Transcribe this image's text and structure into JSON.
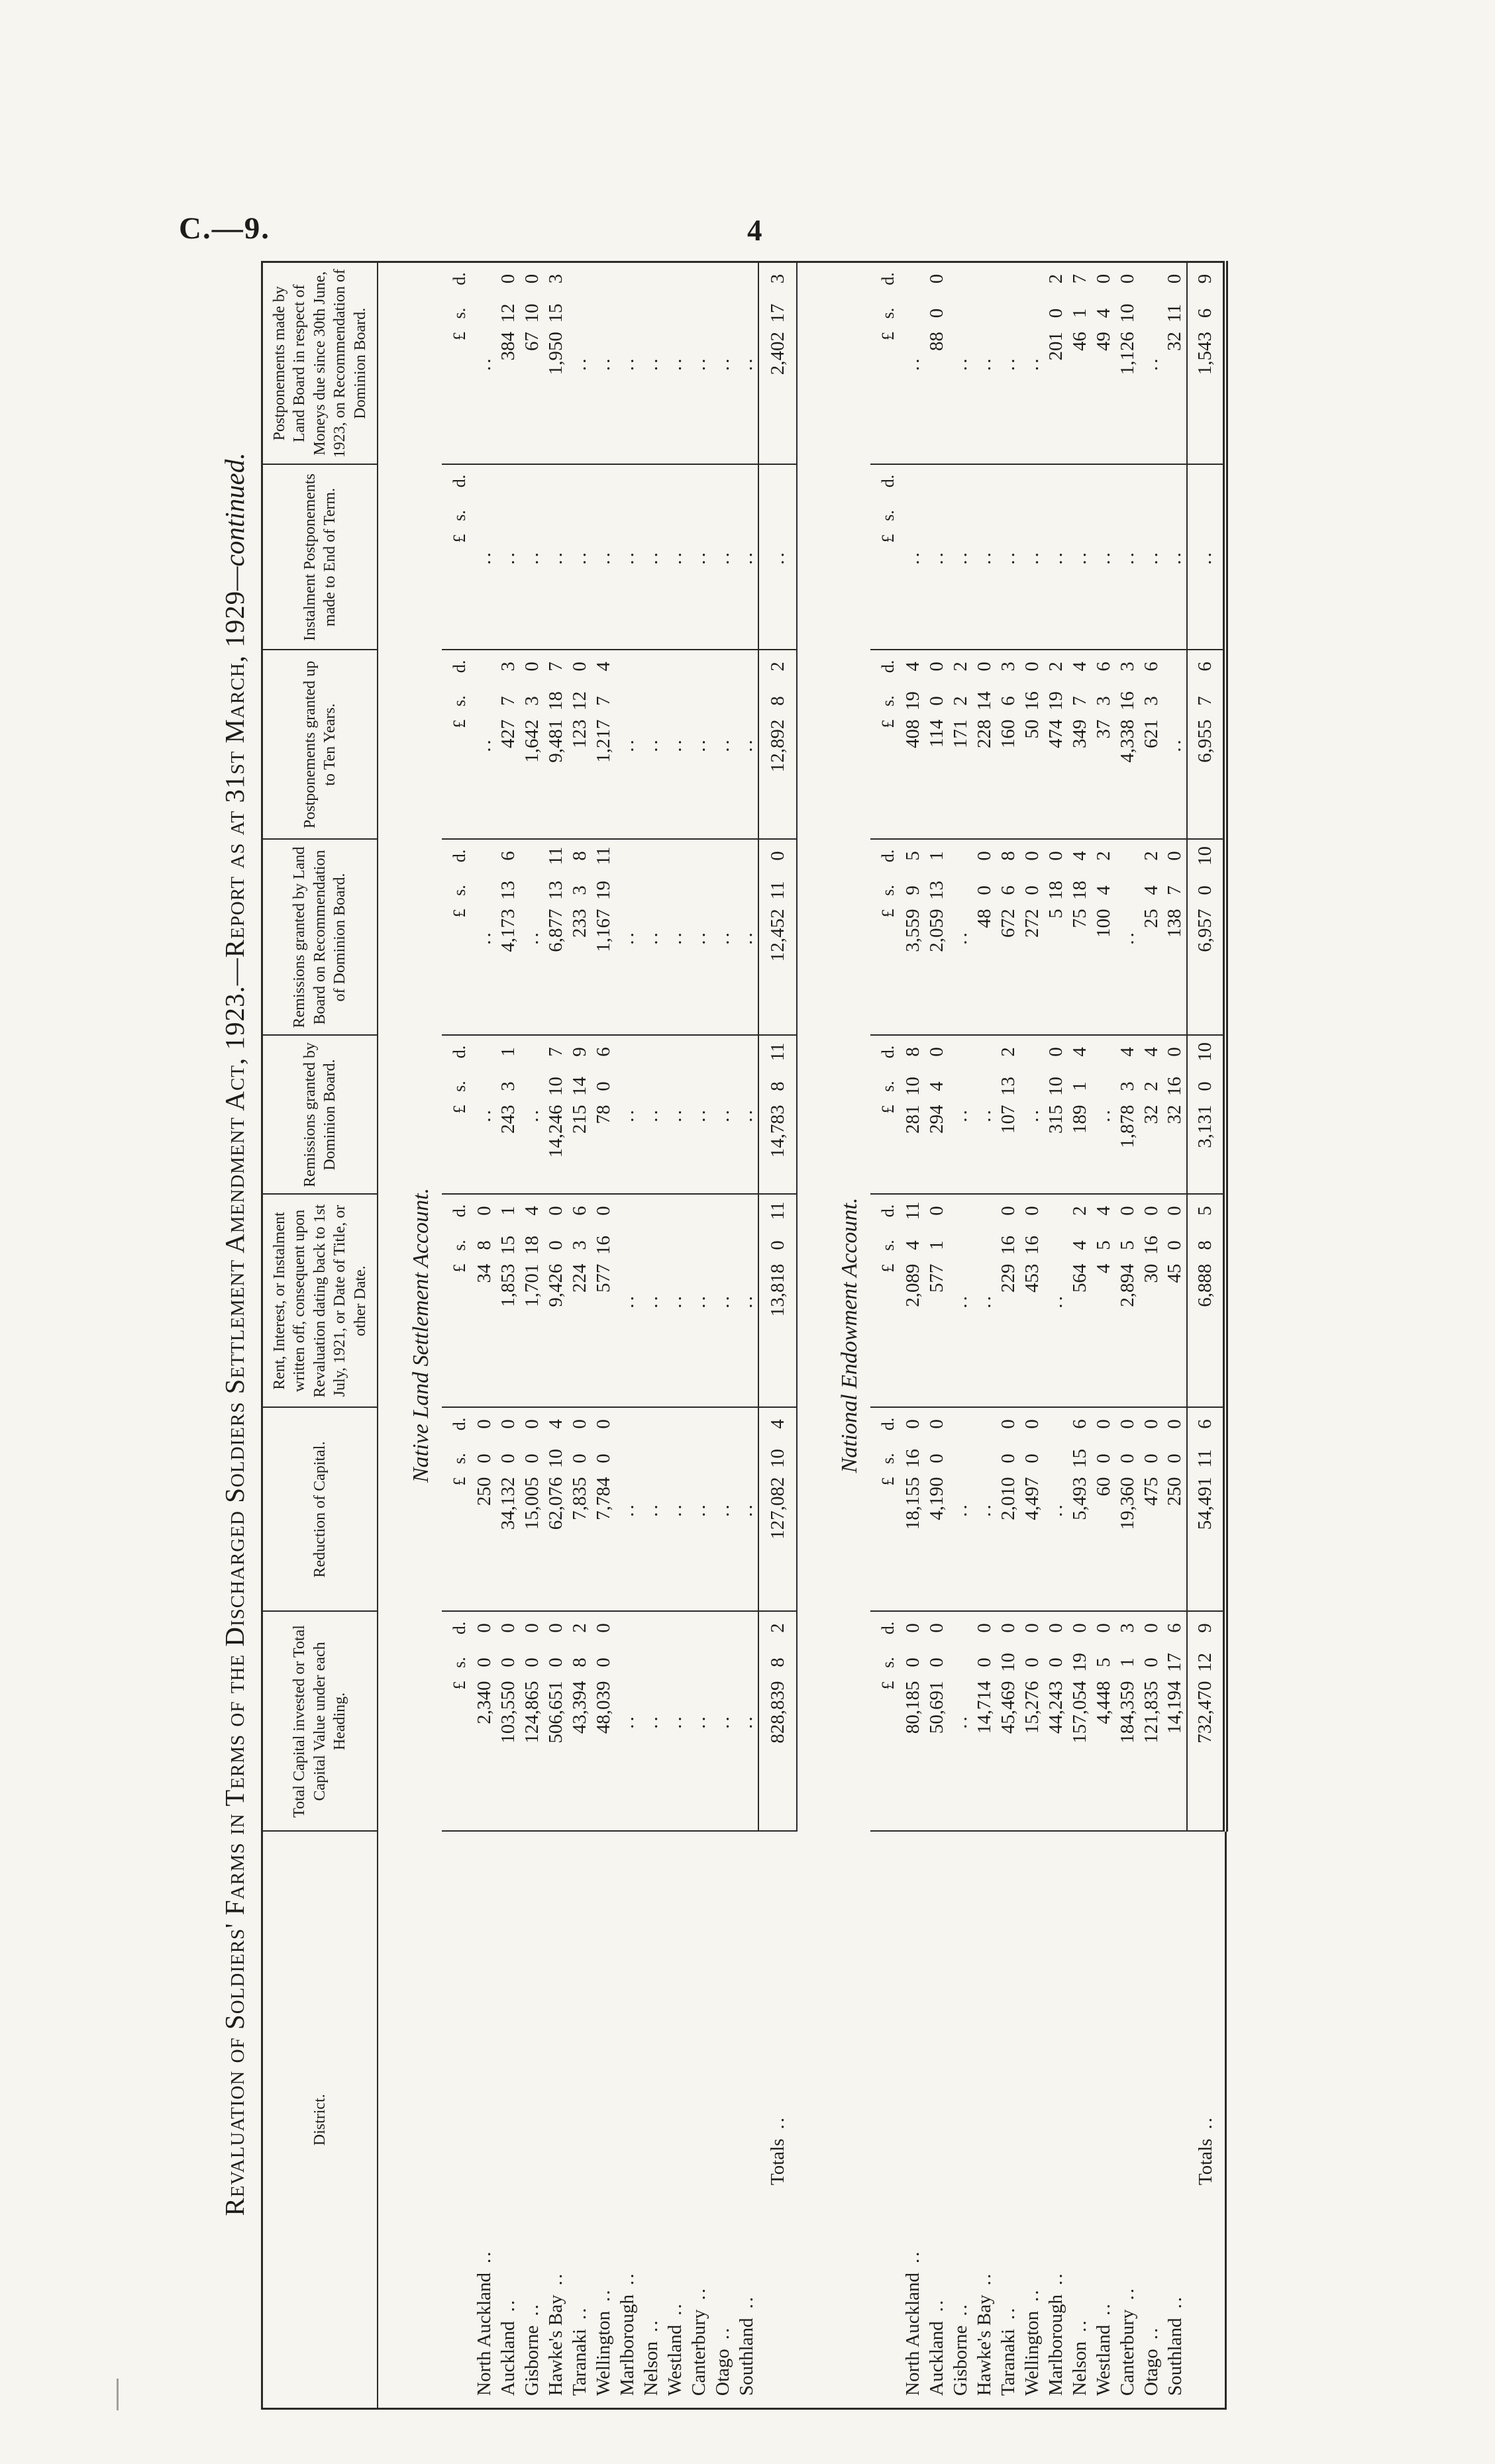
{
  "page": {
    "doc_ref": "C.—9.",
    "page_number": "4"
  },
  "title": {
    "text": "Revaluation of Soldiers' Farms in Terms of the Discharged Soldiers Settlement Amendment Act, 1923.—Report as at 31st March, 1929",
    "continued": "—continued."
  },
  "table": {
    "columns": [
      "District.",
      "Total Capital invested or Total Capital Value under each Heading.",
      "Reduction of Capital.",
      "Rent, Interest, or Instalment written off, consequent upon Revaluation dating back to 1st July, 1921, or Date of Title, or other Date.",
      "Remissions granted by Dominion Board.",
      "Remissions granted by Land Board on Recommendation of Dominion Board.",
      "Postponements granted up to Ten Years.",
      "Instalment Postponements made to End of Term.",
      "Postponements made by Land Board in respect of Moneys due since 30th June, 1923, on Recommendation of Dominion Board."
    ],
    "currency_unit": {
      "pounds": "£",
      "shillings": "s.",
      "pence": "d."
    },
    "blank_marker": "..",
    "leader": "..",
    "totals_label": "Totals",
    "sections": [
      {
        "heading": "Native Land Settlement Account.",
        "rows": [
          {
            "district": "North Auckland",
            "values": [
              "2,340 0 0",
              "250 0 0",
              "34 8 0",
              "..",
              "..",
              "..",
              "..",
              ".."
            ]
          },
          {
            "district": "Auckland",
            "values": [
              "103,550 0 0",
              "34,132 0 0",
              "1,853 15 1",
              "243 3 1",
              "4,173 13 6",
              "427 7 3",
              "..",
              "384 12 0"
            ]
          },
          {
            "district": "Gisborne",
            "values": [
              "124,865 0 0",
              "15,005 0 0",
              "1,701 18 4",
              "..",
              "..",
              "1,642 3 0",
              "..",
              "67 10 0"
            ]
          },
          {
            "district": "Hawke's Bay",
            "values": [
              "506,651 0 0",
              "62,076 10 4",
              "9,426 0 0",
              "14,246 10 7",
              "6,877 13 11",
              "9,481 18 7",
              "..",
              "1,950 15 3"
            ]
          },
          {
            "district": "Taranaki",
            "values": [
              "43,394 8 2",
              "7,835 0 0",
              "224 3 6",
              "215 14 9",
              "233 3 8",
              "123 12 0",
              "..",
              ".."
            ]
          },
          {
            "district": "Wellington",
            "values": [
              "48,039 0 0",
              "7,784 0 0",
              "577 16 0",
              "78 0 6",
              "1,167 19 11",
              "1,217 7 4",
              "..",
              ".."
            ]
          },
          {
            "district": "Marlborough",
            "values": [
              "..",
              "..",
              "..",
              "..",
              "..",
              "..",
              "..",
              ".."
            ]
          },
          {
            "district": "Nelson",
            "values": [
              "..",
              "..",
              "..",
              "..",
              "..",
              "..",
              "..",
              ".."
            ]
          },
          {
            "district": "Westland",
            "values": [
              "..",
              "..",
              "..",
              "..",
              "..",
              "..",
              "..",
              ".."
            ]
          },
          {
            "district": "Canterbury",
            "values": [
              "..",
              "..",
              "..",
              "..",
              "..",
              "..",
              "..",
              ".."
            ]
          },
          {
            "district": "Otago",
            "values": [
              "..",
              "..",
              "..",
              "..",
              "..",
              "..",
              "..",
              ".."
            ]
          },
          {
            "district": "Southland",
            "values": [
              "..",
              "..",
              "..",
              "..",
              "..",
              "..",
              "..",
              ".."
            ]
          }
        ],
        "totals": {
          "district": "Totals",
          "values": [
            "828,839 8 2",
            "127,082 10 4",
            "13,818 0 11",
            "14,783 8 11",
            "12,452 11 0",
            "12,892 8 2",
            "..",
            "2,402 17 3"
          ]
        }
      },
      {
        "heading": "National Endowment Account.",
        "rows": [
          {
            "district": "North Auckland",
            "values": [
              "80,185 0 0",
              "18,155 16 0",
              "2,089 4 11",
              "281 10 8",
              "3,559 9 5",
              "408 19 4",
              "..",
              ".."
            ]
          },
          {
            "district": "Auckland",
            "values": [
              "50,691 0 0",
              "4,190 0 0",
              "577 1 0",
              "294 4 0",
              "2,059 13 1",
              "114 0 0",
              "..",
              "88 0 0"
            ]
          },
          {
            "district": "Gisborne",
            "values": [
              "..",
              "..",
              "..",
              "..",
              "..",
              "171 2 2",
              "..",
              ".."
            ]
          },
          {
            "district": "Hawke's Bay",
            "values": [
              "14,714 0 0",
              "..",
              "..",
              "..",
              "48 0 0",
              "228 14 0",
              "..",
              ".."
            ]
          },
          {
            "district": "Taranaki",
            "values": [
              "45,469 10 0",
              "2,010 0 0",
              "229 16 0",
              "107 13 2",
              "672 6 8",
              "160 6 3",
              "..",
              ".."
            ]
          },
          {
            "district": "Wellington",
            "values": [
              "15,276 0 0",
              "4,497 0 0",
              "453 16 0",
              "..",
              "272 0 0",
              "50 16 0",
              "..",
              ".."
            ]
          },
          {
            "district": "Marlborough",
            "values": [
              "44,243 0 0",
              "..",
              "..",
              "315 10 0",
              "5 18 0",
              "474 19 2",
              "..",
              "201 0 2"
            ]
          },
          {
            "district": "Nelson",
            "values": [
              "157,054 19 0",
              "5,493 15 6",
              "564 4 2",
              "189 1 4",
              "75 18 4",
              "349 7 4",
              "..",
              "46 1 7"
            ]
          },
          {
            "district": "Westland",
            "values": [
              "4,448 5 0",
              "60 0 0",
              "4 5 4",
              "..",
              "100 4 2",
              "37 3 6",
              "..",
              "49 4 0"
            ]
          },
          {
            "district": "Canterbury",
            "values": [
              "184,359 1 3",
              "19,360 0 0",
              "2,894 5 0",
              "1,878 3 4",
              "..",
              "4,338 16 3",
              "..",
              "1,126 10 0"
            ]
          },
          {
            "district": "Otago",
            "values": [
              "121,835 0 0",
              "475 0 0",
              "30 16 0",
              "32 2 4",
              "25 4 2",
              "621 3 6",
              "..",
              ".."
            ]
          },
          {
            "district": "Southland",
            "values": [
              "14,194 17 6",
              "250 0 0",
              "45 0 0",
              "32 16 0",
              "138 7 0",
              "..",
              "..",
              "32 11 0"
            ]
          }
        ],
        "totals": {
          "district": "Totals",
          "values": [
            "732,470 12 9",
            "54,491 11 6",
            "6,888 8 5",
            "3,131 0 10",
            "6,957 0 10",
            "6,955 7 6",
            "..",
            "1,543 6 9"
          ]
        }
      }
    ]
  }
}
